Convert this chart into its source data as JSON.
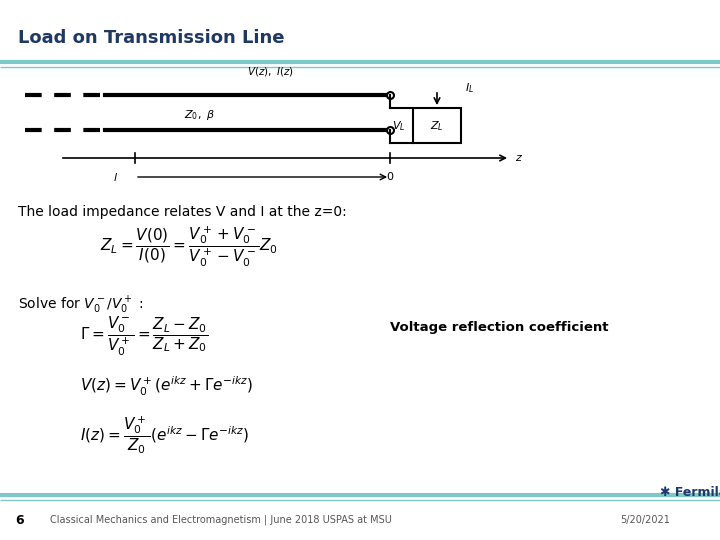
{
  "title": "Load on Transmission Line",
  "title_color": "#1F3864",
  "background_color": "#ffffff",
  "accent_line_color": "#7EC8C8",
  "body_text_color": "#000000",
  "text1": "The load impedance relates V and I at the z=0:",
  "text2": "Solve for $V_0^-$/$V_0^+$ :",
  "annotation": "Voltage reflection coefficient",
  "footer_left_num": "6",
  "footer_text": "Classical Mechanics and Electromagnetism | June 2018 USPAS at MSU",
  "footer_date": "5/20/2021",
  "fermilab_color": "#1A3A6B",
  "eq1": "$Z_L = \\dfrac{V(0)}{I(0)} = \\dfrac{V_0^+ + V_0^-}{V_0^+ - V_0^-}Z_0$",
  "eq2": "$\\Gamma = \\dfrac{V_0^-}{V_0^+} = \\dfrac{Z_L - Z_0}{Z_L + Z_0}$",
  "eq3": "$V(z) = V_0^+\\left(e^{ikz} + \\Gamma e^{-ikz}\\right)$",
  "eq4": "$I(z) = \\dfrac{V_0^+}{Z_0}\\left(e^{ikz} - \\Gamma e^{-ikz}\\right)$"
}
